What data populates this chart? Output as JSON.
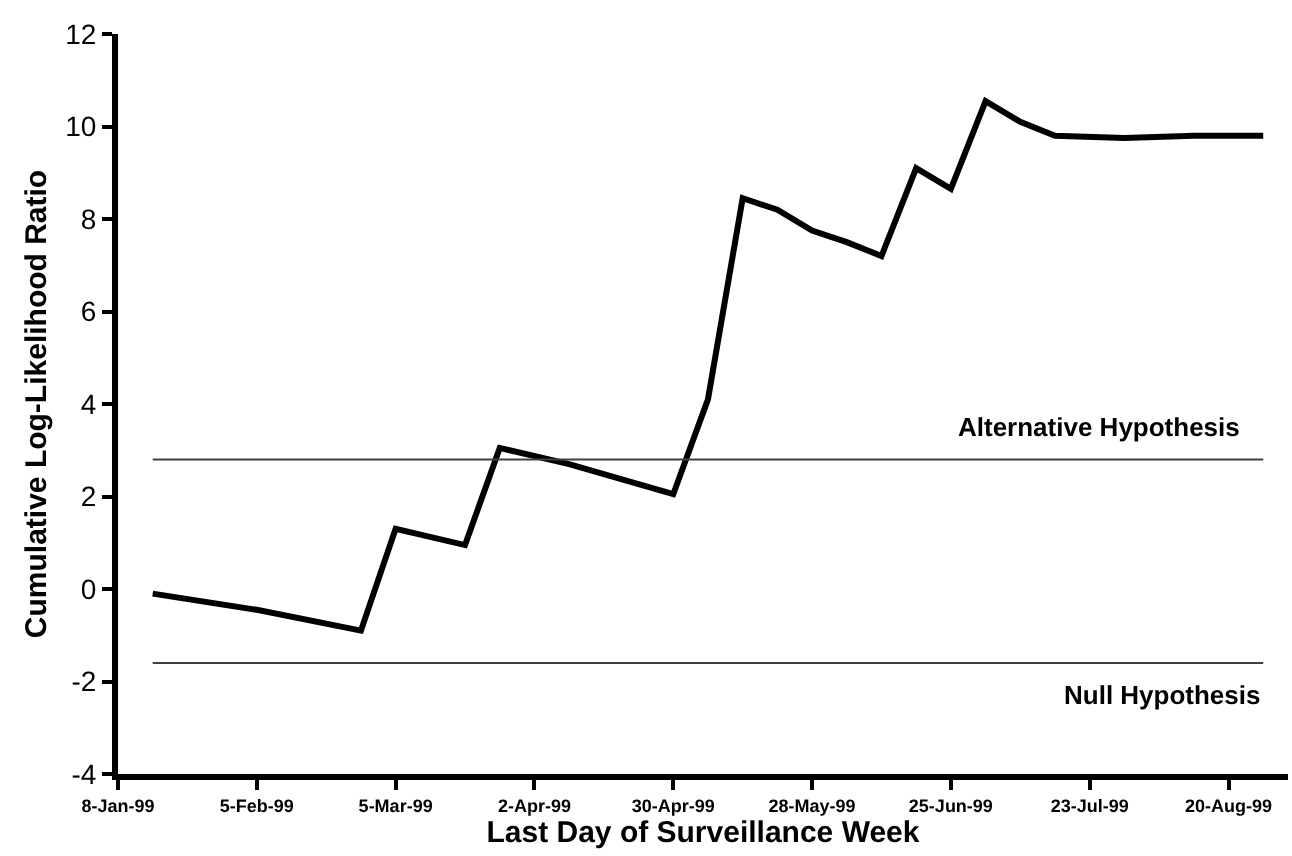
{
  "chart_data": {
    "type": "line",
    "xlabel": "Last Day of Surveillance Week",
    "ylabel": "Cumulative Log-Likelihood Ratio",
    "x": [
      "1999-01-15",
      "1999-02-05",
      "1999-02-26",
      "1999-03-05",
      "1999-03-19",
      "1999-03-26",
      "1999-04-09",
      "1999-04-30",
      "1999-05-07",
      "1999-05-14",
      "1999-05-21",
      "1999-05-28",
      "1999-06-04",
      "1999-06-11",
      "1999-06-18",
      "1999-06-25",
      "1999-07-02",
      "1999-07-09",
      "1999-07-16",
      "1999-07-30",
      "1999-08-13",
      "1999-08-27"
    ],
    "series": [
      {
        "color": "#000000",
        "values": [
          -0.1,
          -0.45,
          -0.9,
          1.3,
          0.95,
          3.05,
          2.7,
          2.05,
          4.1,
          8.45,
          8.2,
          7.75,
          7.5,
          7.2,
          9.1,
          8.65,
          10.55,
          10.1,
          9.8,
          9.75,
          9.8,
          9.8
        ]
      }
    ],
    "xlim": [
      "1999-01-08",
      "1999-09-01"
    ],
    "xticks": [
      {
        "value": "1999-01-08",
        "label": "8-Jan-99"
      },
      {
        "value": "1999-02-05",
        "label": "5-Feb-99"
      },
      {
        "value": "1999-03-05",
        "label": "5-Mar-99"
      },
      {
        "value": "1999-04-02",
        "label": "2-Apr-99"
      },
      {
        "value": "1999-04-30",
        "label": "30-Apr-99"
      },
      {
        "value": "1999-05-28",
        "label": "28-May-99"
      },
      {
        "value": "1999-06-25",
        "label": "25-Jun-99"
      },
      {
        "value": "1999-07-23",
        "label": "23-Jul-99"
      },
      {
        "value": "1999-08-20",
        "label": "20-Aug-99"
      }
    ],
    "ylim": [
      -4,
      12
    ],
    "yticks": [
      -4,
      -2,
      0,
      2,
      4,
      6,
      8,
      10,
      12
    ],
    "ref_lines": [
      {
        "axis": "y",
        "value": 2.8,
        "label": "Alternative Hypothesis",
        "color": "#404040"
      },
      {
        "axis": "y",
        "value": -1.6,
        "label": "Null Hypothesis",
        "color": "#404040"
      }
    ],
    "grid": false,
    "marker": "none",
    "line_style": "solid"
  }
}
